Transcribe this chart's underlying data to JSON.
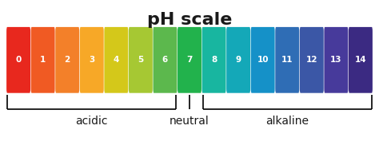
{
  "title": "pH scale",
  "ph_values": [
    0,
    1,
    2,
    3,
    4,
    5,
    6,
    7,
    8,
    9,
    10,
    11,
    12,
    13,
    14
  ],
  "colors": [
    "#e8281e",
    "#f05a23",
    "#f38029",
    "#f7a827",
    "#d4c81a",
    "#a6c833",
    "#5cb84d",
    "#22b24c",
    "#18b6a0",
    "#14a8b8",
    "#1591c8",
    "#2f6db5",
    "#3b57a6",
    "#473a9b",
    "#3b2a82"
  ],
  "labels": [
    "acidic",
    "neutral",
    "alkaline"
  ],
  "background_color": "#ffffff",
  "text_color": "#ffffff",
  "title_color": "#1a1a1a",
  "label_color": "#1a1a1a",
  "title_fontsize": 16,
  "label_fontsize": 10,
  "num_fontsize": 7.5
}
